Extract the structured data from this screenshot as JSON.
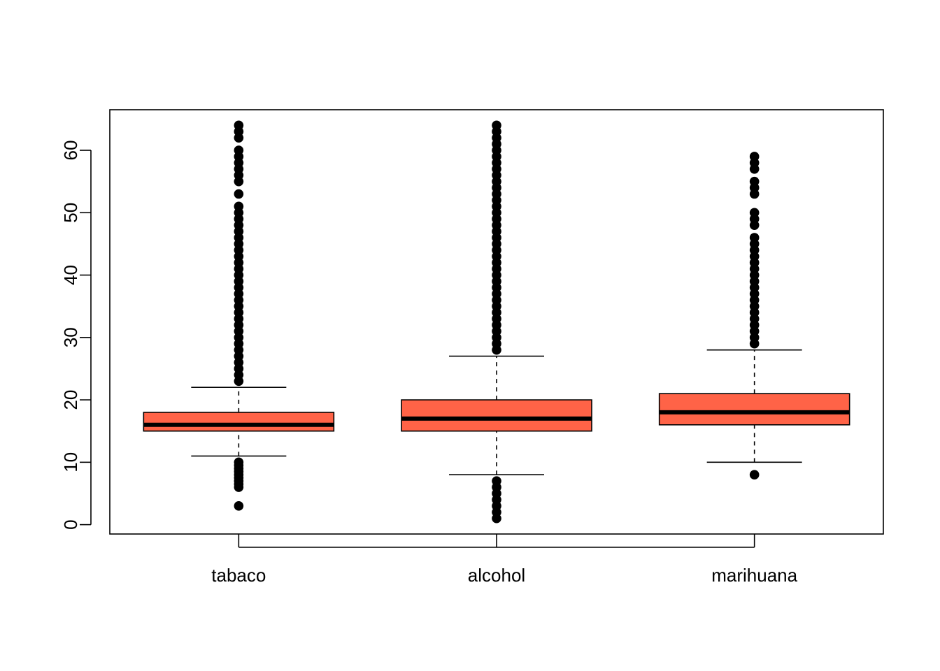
{
  "chart_data": {
    "type": "boxplot",
    "title": "",
    "xlabel": "",
    "ylabel": "",
    "categories": [
      "tabaco",
      "alcohol",
      "marihuana"
    ],
    "ylim": [
      -1.5,
      66.5
    ],
    "yticks": [
      "0",
      "10",
      "20",
      "30",
      "40",
      "50",
      "60"
    ],
    "grid": false,
    "box_color": "#FF6347",
    "line_color": "#000000",
    "boxes": [
      {
        "category": "tabaco",
        "whisker_low": 11,
        "q1": 15,
        "median": 16,
        "q3": 18,
        "whisker_high": 22,
        "outliers": [
          3,
          6,
          6.5,
          7,
          7.5,
          8,
          8.5,
          9,
          9.5,
          10,
          23,
          24,
          25,
          26,
          27,
          28,
          29,
          30,
          31,
          32,
          33,
          34,
          35,
          36,
          37,
          38,
          39,
          40,
          41,
          42,
          43,
          44,
          45,
          46,
          47,
          48,
          49,
          50,
          51,
          53,
          55,
          56,
          57,
          58,
          59,
          60,
          62,
          63,
          64
        ]
      },
      {
        "category": "alcohol",
        "whisker_low": 8,
        "q1": 15,
        "median": 17,
        "q3": 20,
        "whisker_high": 27,
        "outliers": [
          1,
          2,
          3,
          4,
          5,
          6,
          7,
          28,
          29,
          30,
          31,
          32,
          33,
          34,
          35,
          36,
          37,
          38,
          39,
          40,
          41,
          42,
          43,
          44,
          45,
          46,
          47,
          48,
          49,
          50,
          51,
          52,
          53,
          54,
          55,
          56,
          57,
          58,
          59,
          60,
          61,
          62,
          63,
          64
        ]
      },
      {
        "category": "marihuana",
        "whisker_low": 10,
        "q1": 16,
        "median": 18,
        "q3": 21,
        "whisker_high": 28,
        "outliers": [
          8,
          29,
          30,
          31,
          32,
          33,
          34,
          35,
          36,
          37,
          38,
          39,
          40,
          41,
          42,
          43,
          44,
          45,
          46,
          48,
          49,
          50,
          53,
          54,
          55,
          57,
          58,
          59
        ]
      }
    ]
  }
}
